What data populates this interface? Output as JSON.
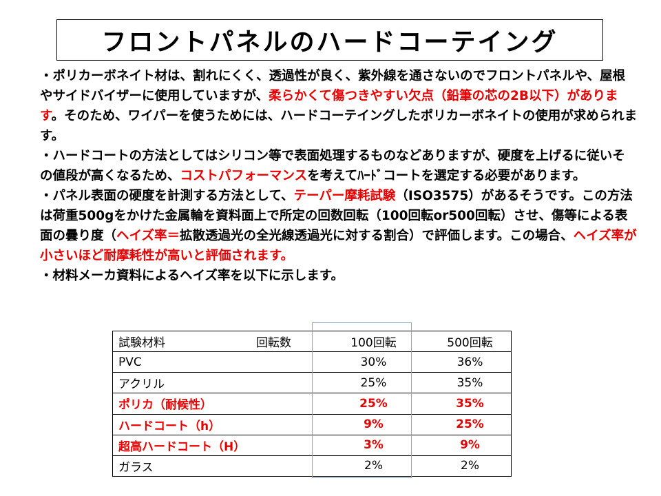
{
  "title": "フロントパネルのハードコーテイング",
  "paragraphs": [
    {
      "parts": [
        {
          "text": "・ポリカーボネイト材は、割れにくく、透過性が良く、紫外線を通さないのでフロントパネルや、屋根やサイドバイザーに使用していますが、",
          "red": false
        },
        {
          "text": "柔らかくて傷つきやすい欠点（鉛筆の芯の2B以下）があります",
          "red": true
        },
        {
          "text": "。そのため、ワイパーを使うためには、ハードコーテイングしたポリカーボネイトの使用が求められます。",
          "red": false
        }
      ]
    },
    {
      "parts": [
        {
          "text": "・ハードコートの方法としてはシリコン等で表面処理するものなどありますが、硬度を上げるに従いその値段が高くなるため、",
          "red": false
        },
        {
          "text": "コストパフォーマンス",
          "red": true
        },
        {
          "text": "を考えてﾊｰﾄﾞコートを選定する必要があります。",
          "red": false
        }
      ]
    },
    {
      "parts": [
        {
          "text": "・パネル表面の硬度を計測する方法として、",
          "red": false
        },
        {
          "text": "テーパー摩耗試験",
          "red": true
        },
        {
          "text": "（ISO3575）があるそうです。この方法は荷重500gをかけた金属輪を資料面上で所定の回数回転（100回転or500回転）させ、傷等による表面の曇り度（",
          "red": false
        },
        {
          "text": "ヘイズ率＝",
          "red": true
        },
        {
          "text": "拡散透過光の全光線透過光に対する割合）で評価します。この場合、",
          "red": false
        },
        {
          "text": "ヘイズ率が小さいほど耐摩耗性が高いと評価されます。",
          "red": true
        }
      ]
    },
    {
      "parts": [
        {
          "text": "・材料メーカ資料によるヘイズ率を以下に示します。",
          "red": false
        }
      ]
    }
  ],
  "table": {
    "header": {
      "material": "試験材料",
      "rotation": "回転数",
      "col100": "100回転",
      "col500": "500回転"
    },
    "rows": [
      {
        "name": "PVC",
        "v100": "30%",
        "v500": "36%",
        "highlight": false
      },
      {
        "name": "アクリル",
        "v100": "25%",
        "v500": "35%",
        "highlight": false
      },
      {
        "name": "ポリカ（耐候性）",
        "v100": "25%",
        "v500": "35%",
        "highlight": true
      },
      {
        "name": "ハードコート（h）",
        "v100": "9%",
        "v500": "25%",
        "highlight": true
      },
      {
        "name": "超高ハードコート（H）",
        "v100": "3%",
        "v500": "9%",
        "highlight": true
      },
      {
        "name": "ガラス",
        "v100": "2%",
        "v500": "2%",
        "highlight": false
      }
    ]
  },
  "colors": {
    "accent_red": "#e60000"
  }
}
